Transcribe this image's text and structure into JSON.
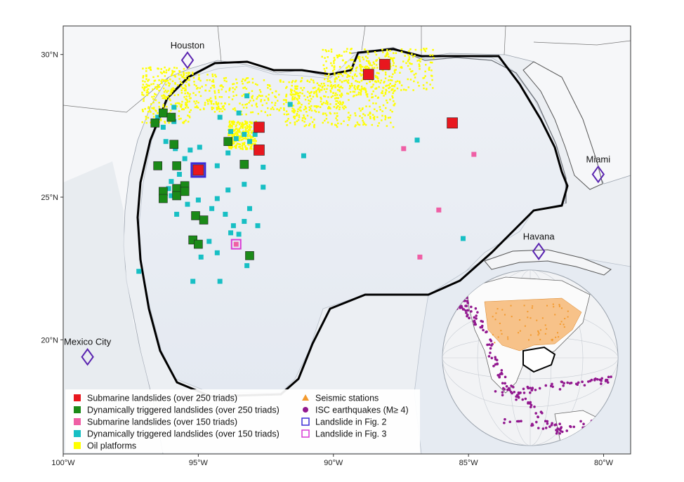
{
  "map": {
    "lon_range": [
      -100,
      -79
    ],
    "lat_range": [
      16,
      31
    ],
    "x_ticks": [
      {
        "value": -100,
        "label": "100°W"
      },
      {
        "value": -95,
        "label": "95°W"
      },
      {
        "value": -90,
        "label": "90°W"
      },
      {
        "value": -85,
        "label": "85°W"
      },
      {
        "value": -80,
        "label": "80°W"
      }
    ],
    "y_ticks": [
      {
        "value": 30,
        "label": "30°N"
      },
      {
        "value": 25,
        "label": "25°N"
      },
      {
        "value": 20,
        "label": "20°N"
      }
    ],
    "cities": [
      {
        "name": "Houston",
        "lon": -95.4,
        "lat": 29.8
      },
      {
        "name": "Miami",
        "lon": -80.2,
        "lat": 25.8
      },
      {
        "name": "Havana",
        "lon": -82.4,
        "lat": 23.1
      },
      {
        "name": "Mexico City",
        "lon": -99.1,
        "lat": 19.4
      }
    ],
    "colors": {
      "submarine_250": "#e8171e",
      "dynamic_250": "#1b8a18",
      "submarine_150": "#ef5fa5",
      "dynamic_150": "#17bfc4",
      "oil_platform": "#ffff00",
      "seismic_station": "#f39a2e",
      "isc_earthquake": "#92188f",
      "fig2_outline": "#3a2bd6",
      "fig3_outline": "#d93ad4",
      "city_marker": "#5a24b0"
    }
  },
  "submarine_landslides_250": [
    {
      "lon": -88.7,
      "lat": 29.3
    },
    {
      "lon": -88.1,
      "lat": 29.65
    },
    {
      "lon": -85.6,
      "lat": 27.6
    },
    {
      "lon": -92.75,
      "lat": 27.45
    },
    {
      "lon": -92.75,
      "lat": 26.65
    },
    {
      "lon": -95.0,
      "lat": 25.95
    }
  ],
  "dynamic_landslides_250": [
    {
      "lon": -96.3,
      "lat": 27.95
    },
    {
      "lon": -96.0,
      "lat": 27.8
    },
    {
      "lon": -96.6,
      "lat": 27.6
    },
    {
      "lon": -95.9,
      "lat": 26.85
    },
    {
      "lon": -96.5,
      "lat": 26.1
    },
    {
      "lon": -95.8,
      "lat": 26.1
    },
    {
      "lon": -93.3,
      "lat": 26.15
    },
    {
      "lon": -93.9,
      "lat": 26.95
    },
    {
      "lon": -96.3,
      "lat": 25.2
    },
    {
      "lon": -96.3,
      "lat": 24.95
    },
    {
      "lon": -95.8,
      "lat": 25.3
    },
    {
      "lon": -95.5,
      "lat": 25.4
    },
    {
      "lon": -95.8,
      "lat": 25.05
    },
    {
      "lon": -95.5,
      "lat": 25.2
    },
    {
      "lon": -95.1,
      "lat": 24.35
    },
    {
      "lon": -94.8,
      "lat": 24.2
    },
    {
      "lon": -95.2,
      "lat": 23.5
    },
    {
      "lon": -95.0,
      "lat": 23.35
    },
    {
      "lon": -93.1,
      "lat": 22.95
    }
  ],
  "submarine_landslides_150": [
    {
      "lon": -87.4,
      "lat": 26.7
    },
    {
      "lon": -84.8,
      "lat": 26.5
    },
    {
      "lon": -86.1,
      "lat": 24.55
    },
    {
      "lon": -86.8,
      "lat": 22.9
    },
    {
      "lon": -93.6,
      "lat": 23.35
    }
  ],
  "dynamic_landslides_150": [
    {
      "lon": -95.9,
      "lat": 28.15
    },
    {
      "lon": -96.5,
      "lat": 27.8
    },
    {
      "lon": -96.3,
      "lat": 27.45
    },
    {
      "lon": -95.9,
      "lat": 27.65
    },
    {
      "lon": -96.2,
      "lat": 26.95
    },
    {
      "lon": -95.85,
      "lat": 26.7
    },
    {
      "lon": -95.3,
      "lat": 26.65
    },
    {
      "lon": -94.95,
      "lat": 26.75
    },
    {
      "lon": -95.5,
      "lat": 26.35
    },
    {
      "lon": -95.7,
      "lat": 25.8
    },
    {
      "lon": -96.0,
      "lat": 25.55
    },
    {
      "lon": -96.1,
      "lat": 25.3
    },
    {
      "lon": -96.0,
      "lat": 25.05
    },
    {
      "lon": -95.4,
      "lat": 24.75
    },
    {
      "lon": -95.8,
      "lat": 24.4
    },
    {
      "lon": -95.0,
      "lat": 24.9
    },
    {
      "lon": -94.5,
      "lat": 24.6
    },
    {
      "lon": -94.3,
      "lat": 24.95
    },
    {
      "lon": -94.0,
      "lat": 24.4
    },
    {
      "lon": -93.7,
      "lat": 24.0
    },
    {
      "lon": -93.5,
      "lat": 23.7
    },
    {
      "lon": -93.3,
      "lat": 24.15
    },
    {
      "lon": -93.1,
      "lat": 24.6
    },
    {
      "lon": -92.8,
      "lat": 24.0
    },
    {
      "lon": -92.6,
      "lat": 25.35
    },
    {
      "lon": -93.3,
      "lat": 25.45
    },
    {
      "lon": -93.9,
      "lat": 25.25
    },
    {
      "lon": -94.3,
      "lat": 26.1
    },
    {
      "lon": -93.9,
      "lat": 26.55
    },
    {
      "lon": -93.6,
      "lat": 27.05
    },
    {
      "lon": -93.3,
      "lat": 27.2
    },
    {
      "lon": -93.1,
      "lat": 26.95
    },
    {
      "lon": -92.9,
      "lat": 27.2
    },
    {
      "lon": -92.6,
      "lat": 26.05
    },
    {
      "lon": -93.8,
      "lat": 27.3
    },
    {
      "lon": -93.2,
      "lat": 28.55
    },
    {
      "lon": -93.5,
      "lat": 27.95
    },
    {
      "lon": -94.2,
      "lat": 27.8
    },
    {
      "lon": -91.6,
      "lat": 28.25
    },
    {
      "lon": -91.1,
      "lat": 26.45
    },
    {
      "lon": -86.9,
      "lat": 27.0
    },
    {
      "lon": -85.2,
      "lat": 23.55
    },
    {
      "lon": -93.2,
      "lat": 22.6
    },
    {
      "lon": -94.9,
      "lat": 22.9
    },
    {
      "lon": -95.2,
      "lat": 22.05
    },
    {
      "lon": -94.2,
      "lat": 22.05
    },
    {
      "lon": -97.2,
      "lat": 22.4
    },
    {
      "lon": -93.8,
      "lat": 23.75
    },
    {
      "lon": -94.6,
      "lat": 23.45
    },
    {
      "lon": -94.3,
      "lat": 23.05
    }
  ],
  "oil_platforms_region": [
    {
      "lon": -96.2,
      "lat": 28.6
    },
    {
      "lon": -89.8,
      "lat": 28.2
    },
    {
      "lon": -88.4,
      "lat": 29.5
    },
    {
      "lon": -93.4,
      "lat": 27.2
    }
  ],
  "highlights": [
    {
      "type": "fig2",
      "lon": -95.0,
      "lat": 25.95
    },
    {
      "type": "fig3",
      "lon": -93.6,
      "lat": 23.35
    }
  ],
  "legend": {
    "left": [
      {
        "key": "submarine_250",
        "label": "Submarine landslides (over 250 triads)"
      },
      {
        "key": "dynamic_250",
        "label": "Dynamically triggered landslides (over 250 triads)"
      },
      {
        "key": "submarine_150",
        "label": "Submarine landslides (over 150 triads)"
      },
      {
        "key": "dynamic_150",
        "label": "Dynamically triggered landslides (over 150 triads)"
      },
      {
        "key": "oil_platform",
        "label": "Oil platforms"
      }
    ],
    "right": [
      {
        "key": "seismic_station",
        "label": "Seismic stations"
      },
      {
        "key": "isc_earthquake",
        "label": "ISC earthquakes (M≥ 4)"
      },
      {
        "key": "fig2",
        "label": "Landslide in Fig. 2"
      },
      {
        "key": "fig3",
        "label": "Landslide in Fig. 3"
      }
    ]
  }
}
